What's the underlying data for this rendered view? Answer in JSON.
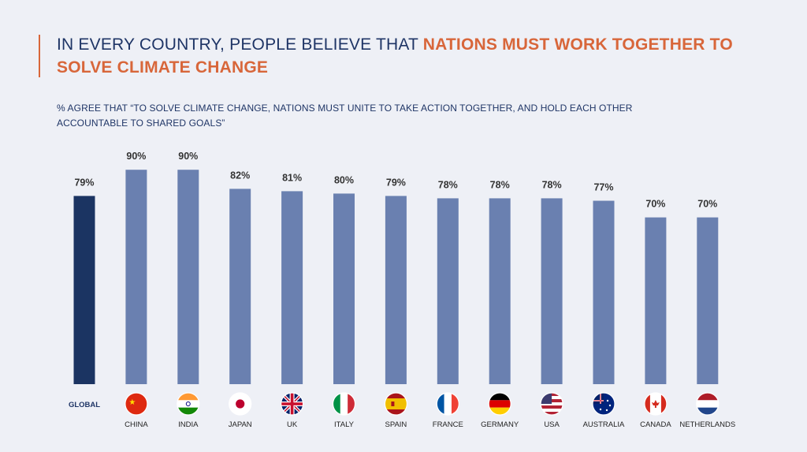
{
  "header": {
    "title_part1": "IN EVERY COUNTRY, PEOPLE BELIEVE THAT ",
    "title_part2": "NATIONS MUST WORK TOGETHER TO SOLVE CLIMATE CHANGE",
    "subtitle": "% AGREE THAT “TO SOLVE CLIMATE CHANGE, NATIONS MUST UNITE TO TAKE ACTION TOGETHER, AND HOLD EACH OTHER ACCOUNTABLE TO SHARED GOALS”"
  },
  "colors": {
    "accent": "#d8663a",
    "global_bar": "#1b3462",
    "country_bar": "#6a80b0",
    "text": "#1f3566",
    "background": "#eef0f6"
  },
  "chart_data": {
    "type": "bar",
    "categories": [
      "GLOBAL",
      "CHINA",
      "INDIA",
      "JAPAN",
      "UK",
      "ITALY",
      "SPAIN",
      "FRANCE",
      "GERMANY",
      "USA",
      "AUSTRALIA",
      "CANADA",
      "NETHERLANDS"
    ],
    "values": [
      79,
      90,
      90,
      82,
      81,
      80,
      79,
      78,
      78,
      78,
      77,
      70,
      70
    ],
    "value_labels": [
      "79%",
      "90%",
      "90%",
      "82%",
      "81%",
      "80%",
      "79%",
      "78%",
      "78%",
      "78%",
      "77%",
      "70%",
      "70%"
    ],
    "flags": [
      "",
      "china-flag-icon",
      "india-flag-icon",
      "japan-flag-icon",
      "uk-flag-icon",
      "italy-flag-icon",
      "spain-flag-icon",
      "france-flag-icon",
      "germany-flag-icon",
      "usa-flag-icon",
      "australia-flag-icon",
      "canada-flag-icon",
      "netherlands-flag-icon"
    ],
    "ylim": [
      0,
      100
    ],
    "grid": false,
    "legend": "none"
  }
}
